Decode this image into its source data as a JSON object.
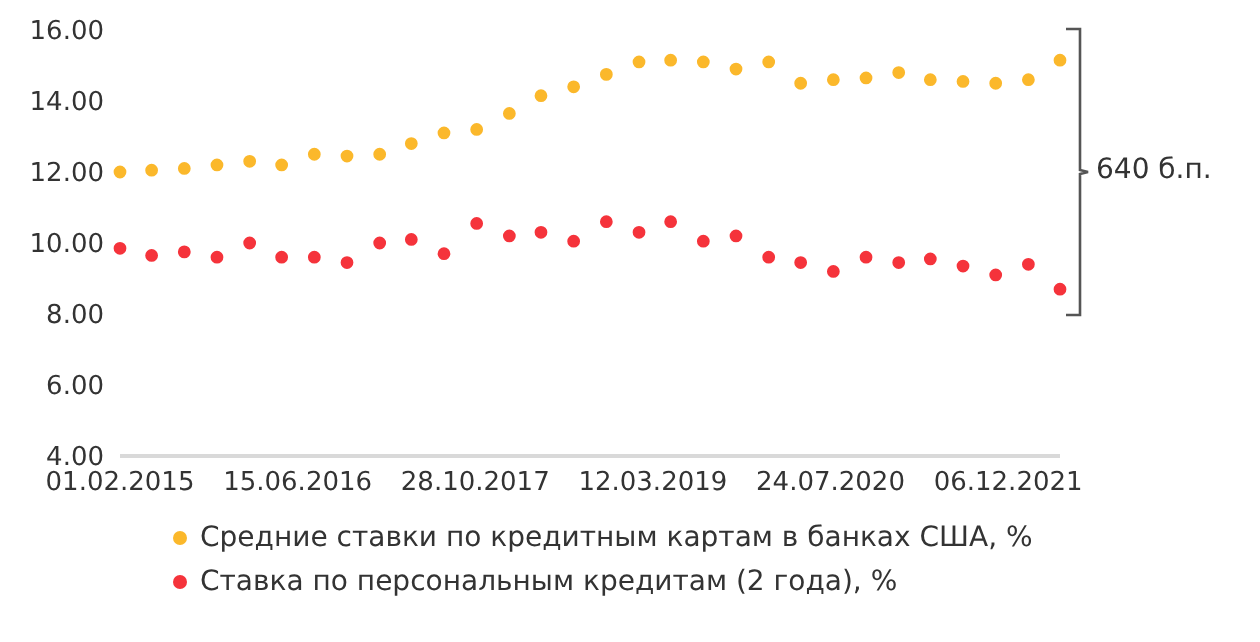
{
  "chart_data": {
    "type": "scatter",
    "x": [
      "2015-02-01",
      "2015-05-01",
      "2015-08-01",
      "2015-11-01",
      "2016-02-01",
      "2016-05-01",
      "2016-08-01",
      "2016-11-01",
      "2017-02-01",
      "2017-05-01",
      "2017-08-01",
      "2017-11-01",
      "2018-02-01",
      "2018-05-01",
      "2018-08-01",
      "2018-11-01",
      "2019-02-01",
      "2019-05-01",
      "2019-08-01",
      "2019-11-01",
      "2020-02-01",
      "2020-05-01",
      "2020-08-01",
      "2020-11-01",
      "2021-02-01",
      "2021-05-01",
      "2021-08-01",
      "2021-11-01",
      "2022-02-01",
      "2022-05-01"
    ],
    "series": [
      {
        "name": "Средние ставки по кредитным картам в банках США, %",
        "color": "#fbb82b",
        "values": [
          12.0,
          12.05,
          12.1,
          12.2,
          12.3,
          12.2,
          12.5,
          12.45,
          12.5,
          12.8,
          13.1,
          13.2,
          13.65,
          14.15,
          14.4,
          14.75,
          15.1,
          15.15,
          15.1,
          14.9,
          15.1,
          14.5,
          14.6,
          14.65,
          14.8,
          14.6,
          14.55,
          14.5,
          14.6,
          15.15
        ]
      },
      {
        "name": "Ставка по персональным кредитам (2 года), %",
        "color": "#f5333b",
        "values": [
          9.85,
          9.65,
          9.75,
          9.6,
          10.0,
          9.6,
          9.6,
          9.45,
          10.0,
          10.1,
          9.7,
          10.55,
          10.2,
          10.3,
          10.05,
          10.6,
          10.3,
          10.6,
          10.05,
          10.2,
          9.6,
          9.45,
          9.2,
          9.6,
          9.45,
          9.55,
          9.35,
          9.1,
          9.4,
          8.7
        ]
      }
    ],
    "xlim": [
      "2015-02-01",
      "2022-05-01"
    ],
    "xticks": [
      {
        "value": "2015-02-01",
        "label": "01.02.2015"
      },
      {
        "value": "2016-06-15",
        "label": "15.06.2016"
      },
      {
        "value": "2017-10-28",
        "label": "28.10.2017"
      },
      {
        "value": "2019-03-12",
        "label": "12.03.2019"
      },
      {
        "value": "2020-07-24",
        "label": "24.07.2020"
      },
      {
        "value": "2021-12-06",
        "label": "06.12.2021"
      }
    ],
    "ylim": [
      4,
      16
    ],
    "yticks": [
      {
        "value": 4,
        "label": "4.00"
      },
      {
        "value": 6,
        "label": "6.00"
      },
      {
        "value": 8,
        "label": "8.00"
      },
      {
        "value": 10,
        "label": "10.00"
      },
      {
        "value": 12,
        "label": "12.00"
      },
      {
        "value": 14,
        "label": "14.00"
      },
      {
        "value": 16,
        "label": "16.00"
      }
    ],
    "annotations": [
      "640 б.п."
    ],
    "marker": "circle",
    "legend": "bottom",
    "grid": false
  }
}
